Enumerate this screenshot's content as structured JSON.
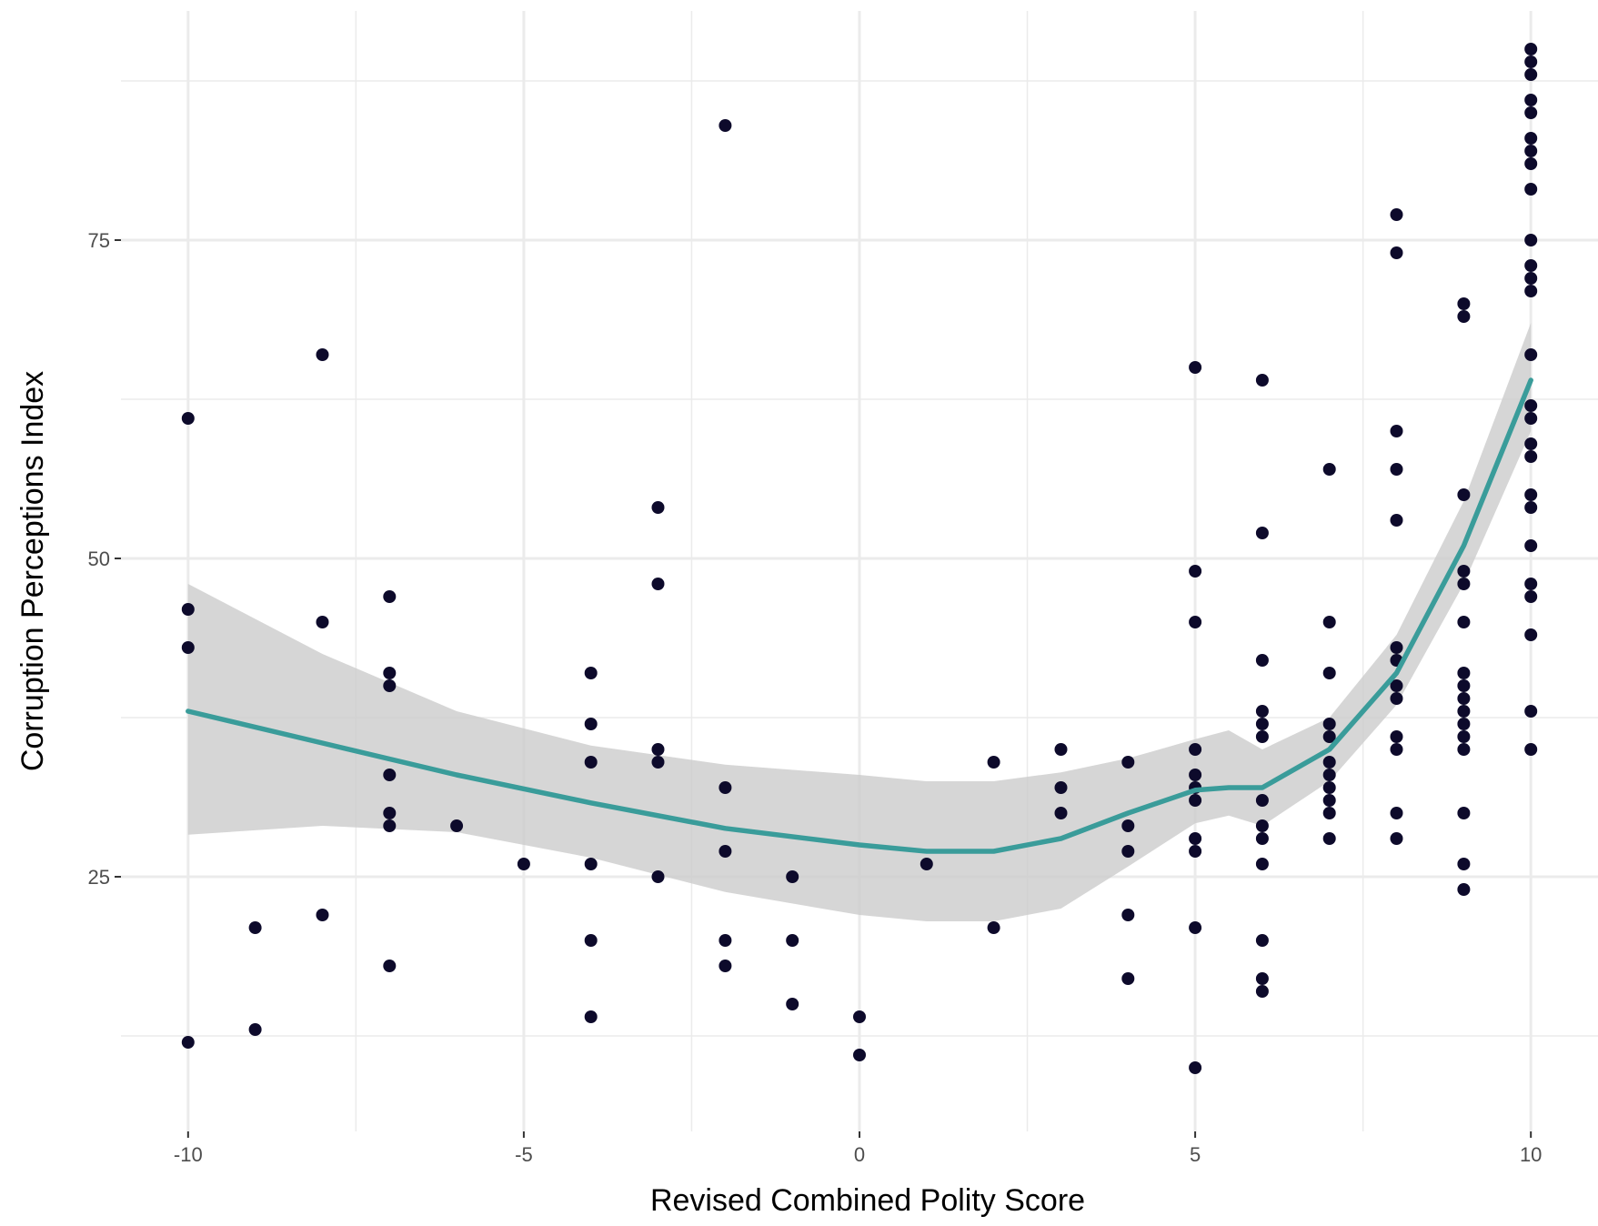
{
  "chart_data": {
    "type": "scatter",
    "title": "",
    "xlabel": "Revised Combined Polity Score",
    "ylabel": "Corruption Perceptions Index",
    "xlim": [
      -11,
      11
    ],
    "ylim": [
      5,
      93
    ],
    "x_ticks": [
      {
        "value": -10,
        "label": "-10"
      },
      {
        "value": -5,
        "label": "-5"
      },
      {
        "value": 0,
        "label": "0"
      },
      {
        "value": 5,
        "label": "5"
      },
      {
        "value": 10,
        "label": "10"
      }
    ],
    "y_ticks": [
      {
        "value": 25,
        "label": "25"
      },
      {
        "value": 50,
        "label": "50"
      },
      {
        "value": 75,
        "label": "75"
      }
    ],
    "grid": true,
    "colors": {
      "points": "#0d0a2b",
      "trend": "#3a9c9a",
      "ribbon": "#cccccc",
      "grid": "#ebebeb",
      "background": "#ffffff"
    },
    "points": [
      [
        -10,
        61
      ],
      [
        -10,
        46
      ],
      [
        -10,
        43
      ],
      [
        -10,
        12
      ],
      [
        -9,
        21
      ],
      [
        -9,
        13
      ],
      [
        -8,
        66
      ],
      [
        -8,
        45
      ],
      [
        -8,
        22
      ],
      [
        -7,
        47
      ],
      [
        -7,
        41
      ],
      [
        -7,
        40
      ],
      [
        -7,
        33
      ],
      [
        -7,
        30
      ],
      [
        -7,
        29
      ],
      [
        -7,
        18
      ],
      [
        -6,
        29
      ],
      [
        -5,
        26
      ],
      [
        -4,
        41
      ],
      [
        -4,
        37
      ],
      [
        -4,
        34
      ],
      [
        -4,
        26
      ],
      [
        -4,
        20
      ],
      [
        -4,
        14
      ],
      [
        -3,
        54
      ],
      [
        -3,
        48
      ],
      [
        -3,
        35
      ],
      [
        -3,
        34
      ],
      [
        -3,
        25
      ],
      [
        -2,
        84
      ],
      [
        -2,
        32
      ],
      [
        -2,
        27
      ],
      [
        -2,
        20
      ],
      [
        -2,
        18
      ],
      [
        -1,
        25
      ],
      [
        -1,
        20
      ],
      [
        -1,
        15
      ],
      [
        0,
        14
      ],
      [
        0,
        11
      ],
      [
        1,
        26
      ],
      [
        2,
        34
      ],
      [
        2,
        21
      ],
      [
        3,
        35
      ],
      [
        3,
        32
      ],
      [
        3,
        30
      ],
      [
        4,
        34
      ],
      [
        4,
        29
      ],
      [
        4,
        27
      ],
      [
        4,
        22
      ],
      [
        4,
        17
      ],
      [
        5,
        65
      ],
      [
        5,
        49
      ],
      [
        5,
        45
      ],
      [
        5,
        35
      ],
      [
        5,
        33
      ],
      [
        5,
        32
      ],
      [
        5,
        31
      ],
      [
        5,
        28
      ],
      [
        5,
        27
      ],
      [
        5,
        21
      ],
      [
        5,
        10
      ],
      [
        6,
        64
      ],
      [
        6,
        52
      ],
      [
        6,
        42
      ],
      [
        6,
        38
      ],
      [
        6,
        37
      ],
      [
        6,
        36
      ],
      [
        6,
        31
      ],
      [
        6,
        29
      ],
      [
        6,
        28
      ],
      [
        6,
        26
      ],
      [
        6,
        20
      ],
      [
        6,
        17
      ],
      [
        6,
        16
      ],
      [
        7,
        57
      ],
      [
        7,
        45
      ],
      [
        7,
        41
      ],
      [
        7,
        37
      ],
      [
        7,
        36
      ],
      [
        7,
        34
      ],
      [
        7,
        33
      ],
      [
        7,
        32
      ],
      [
        7,
        31
      ],
      [
        7,
        30
      ],
      [
        7,
        28
      ],
      [
        8,
        77
      ],
      [
        8,
        74
      ],
      [
        8,
        60
      ],
      [
        8,
        57
      ],
      [
        8,
        53
      ],
      [
        8,
        43
      ],
      [
        8,
        42
      ],
      [
        8,
        40
      ],
      [
        8,
        39
      ],
      [
        8,
        36
      ],
      [
        8,
        35
      ],
      [
        8,
        30
      ],
      [
        8,
        28
      ],
      [
        9,
        70
      ],
      [
        9,
        69
      ],
      [
        9,
        55
      ],
      [
        9,
        49
      ],
      [
        9,
        48
      ],
      [
        9,
        45
      ],
      [
        9,
        41
      ],
      [
        9,
        40
      ],
      [
        9,
        39
      ],
      [
        9,
        38
      ],
      [
        9,
        37
      ],
      [
        9,
        36
      ],
      [
        9,
        35
      ],
      [
        9,
        30
      ],
      [
        9,
        26
      ],
      [
        9,
        24
      ],
      [
        10,
        90
      ],
      [
        10,
        89
      ],
      [
        10,
        88
      ],
      [
        10,
        86
      ],
      [
        10,
        85
      ],
      [
        10,
        83
      ],
      [
        10,
        82
      ],
      [
        10,
        81
      ],
      [
        10,
        79
      ],
      [
        10,
        75
      ],
      [
        10,
        73
      ],
      [
        10,
        72
      ],
      [
        10,
        71
      ],
      [
        10,
        66
      ],
      [
        10,
        62
      ],
      [
        10,
        61
      ],
      [
        10,
        59
      ],
      [
        10,
        58
      ],
      [
        10,
        55
      ],
      [
        10,
        54
      ],
      [
        10,
        51
      ],
      [
        10,
        48
      ],
      [
        10,
        47
      ],
      [
        10,
        44
      ],
      [
        10,
        38
      ],
      [
        10,
        35
      ]
    ],
    "trend": {
      "x": [
        -10,
        -8,
        -6,
        -4,
        -2,
        0,
        1,
        2,
        3,
        4,
        5,
        5.5,
        6,
        7,
        8,
        9,
        10
      ],
      "y": [
        38,
        35.5,
        33,
        30.8,
        28.8,
        27.5,
        27,
        27,
        28,
        30,
        31.8,
        32,
        32,
        35,
        41,
        51,
        64
      ],
      "lower": [
        28.3,
        29,
        28.5,
        26.5,
        23.8,
        22,
        21.5,
        21.5,
        22.5,
        25.8,
        29.2,
        29.8,
        29,
        32.5,
        38.5,
        48,
        60
      ],
      "upper": [
        48,
        42.5,
        38,
        35.3,
        33.8,
        33,
        32.5,
        32.5,
        33.2,
        34.3,
        35.8,
        36.5,
        35,
        37.5,
        44,
        54.5,
        68.5
      ]
    }
  }
}
